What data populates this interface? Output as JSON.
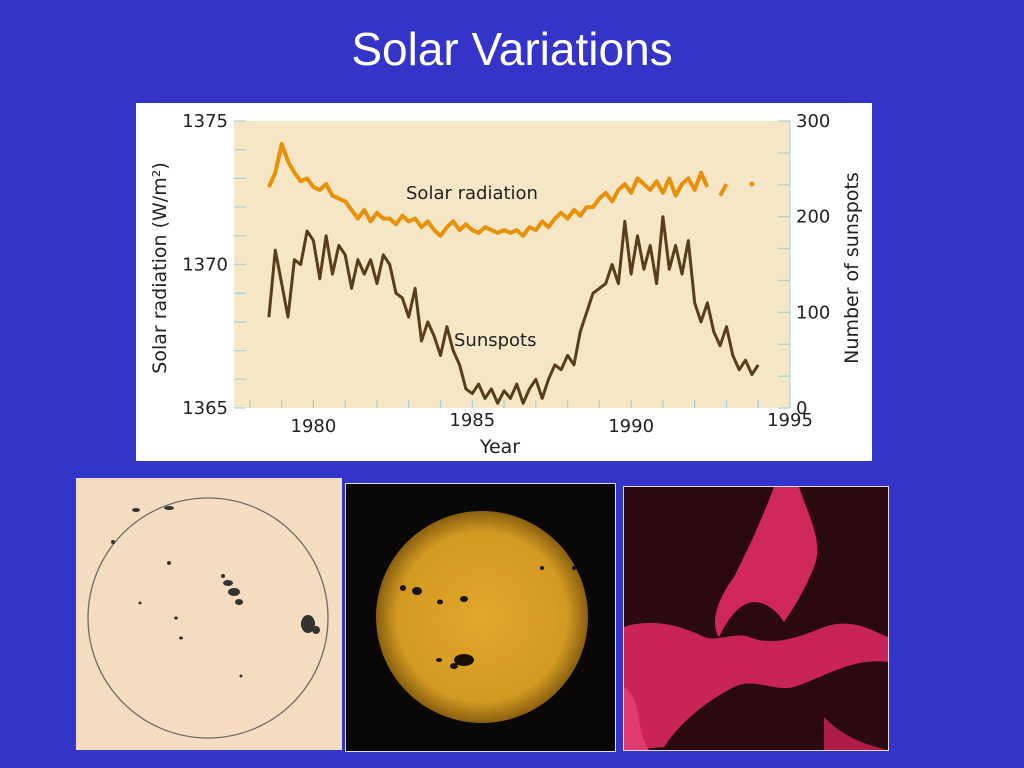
{
  "slide": {
    "title": "Solar Variations"
  },
  "colors": {
    "background": "#3434c8",
    "plot_bg": "#f5e6c6",
    "radiation_line": "#e8900a",
    "sunspots_line": "#5a3d1a",
    "axis_text": "#222222",
    "grid": "#9fd3e0"
  },
  "chart_data": {
    "type": "line",
    "xlabel": "Year",
    "ylabel_left": "Solar radiation (W/m²)",
    "ylabel_right": "Number of sunspots",
    "xlim": [
      1977.5,
      1995
    ],
    "ylim_left": [
      1365,
      1375
    ],
    "ylim_right": [
      0,
      300
    ],
    "x_ticks": [
      "1980",
      "1985",
      "1990",
      "1995"
    ],
    "y_left_ticks": [
      "1365",
      "1370",
      "1375"
    ],
    "y_right_ticks": [
      "0",
      "100",
      "200",
      "300"
    ],
    "series": [
      {
        "name": "Solar radiation",
        "axis": "left",
        "x": [
          1978.6,
          1978.8,
          1979.0,
          1979.2,
          1979.4,
          1979.6,
          1979.8,
          1980.0,
          1980.2,
          1980.4,
          1980.6,
          1980.8,
          1981.0,
          1981.2,
          1981.4,
          1981.6,
          1981.8,
          1982.0,
          1982.2,
          1982.4,
          1982.6,
          1982.8,
          1983.0,
          1983.2,
          1983.4,
          1983.6,
          1983.8,
          1984.0,
          1984.2,
          1984.4,
          1984.6,
          1984.8,
          1985.0,
          1985.2,
          1985.4,
          1985.6,
          1985.8,
          1986.0,
          1986.2,
          1986.4,
          1986.6,
          1986.8,
          1987.0,
          1987.2,
          1987.4,
          1987.6,
          1987.8,
          1988.0,
          1988.2,
          1988.4,
          1988.6,
          1988.8,
          1989.0,
          1989.2,
          1989.4,
          1989.6,
          1989.8,
          1990.0,
          1990.2,
          1990.4,
          1990.6,
          1990.8,
          1991.0,
          1991.2,
          1991.4,
          1991.6,
          1991.8,
          1992.0,
          1992.2,
          1992.4
        ],
        "values": [
          1372.7,
          1373.2,
          1374.2,
          1373.6,
          1373.2,
          1372.9,
          1373.0,
          1372.7,
          1372.6,
          1372.8,
          1372.4,
          1372.3,
          1372.2,
          1371.9,
          1371.6,
          1371.9,
          1371.5,
          1371.8,
          1371.6,
          1371.6,
          1371.4,
          1371.7,
          1371.5,
          1371.6,
          1371.3,
          1371.5,
          1371.2,
          1371.0,
          1371.3,
          1371.5,
          1371.2,
          1371.4,
          1371.2,
          1371.1,
          1371.3,
          1371.2,
          1371.1,
          1371.2,
          1371.1,
          1371.2,
          1371.0,
          1371.3,
          1371.2,
          1371.5,
          1371.3,
          1371.6,
          1371.8,
          1371.6,
          1371.9,
          1371.7,
          1372.0,
          1372.0,
          1372.3,
          1372.5,
          1372.2,
          1372.6,
          1372.8,
          1372.5,
          1373.0,
          1372.8,
          1372.6,
          1372.9,
          1372.5,
          1373.0,
          1372.4,
          1372.8,
          1373.0,
          1372.6,
          1373.2,
          1372.7
        ],
        "extra": {
          "x": [
            1992.8,
            1993.0,
            1993.8
          ],
          "values": [
            1372.4,
            1372.8,
            1372.8
          ]
        }
      },
      {
        "name": "Sunspots",
        "axis": "right",
        "x": [
          1978.6,
          1978.8,
          1979.0,
          1979.2,
          1979.4,
          1979.6,
          1979.8,
          1980.0,
          1980.2,
          1980.4,
          1980.6,
          1980.8,
          1981.0,
          1981.2,
          1981.4,
          1981.6,
          1981.8,
          1982.0,
          1982.2,
          1982.4,
          1982.6,
          1982.8,
          1983.0,
          1983.2,
          1983.4,
          1983.6,
          1983.8,
          1984.0,
          1984.2,
          1984.4,
          1984.6,
          1984.8,
          1985.0,
          1985.2,
          1985.4,
          1985.6,
          1985.8,
          1986.0,
          1986.2,
          1986.4,
          1986.6,
          1986.8,
          1987.0,
          1987.2,
          1987.4,
          1987.6,
          1987.8,
          1988.0,
          1988.2,
          1988.4,
          1988.6,
          1988.8,
          1989.0,
          1989.2,
          1989.4,
          1989.6,
          1989.8,
          1990.0,
          1990.2,
          1990.4,
          1990.6,
          1990.8,
          1991.0,
          1991.2,
          1991.4,
          1991.6,
          1991.8,
          1992.0,
          1992.2,
          1992.4,
          1992.6,
          1992.8,
          1993.0,
          1993.2,
          1993.4,
          1993.6,
          1993.8,
          1994.0
        ],
        "values": [
          95,
          165,
          130,
          95,
          155,
          150,
          185,
          175,
          135,
          180,
          140,
          170,
          160,
          125,
          155,
          140,
          155,
          130,
          160,
          150,
          120,
          115,
          95,
          125,
          70,
          90,
          75,
          55,
          85,
          60,
          45,
          20,
          15,
          25,
          10,
          20,
          5,
          18,
          10,
          25,
          5,
          20,
          30,
          10,
          30,
          45,
          40,
          55,
          45,
          80,
          100,
          120,
          125,
          130,
          150,
          130,
          195,
          140,
          180,
          145,
          170,
          130,
          200,
          145,
          170,
          140,
          175,
          110,
          90,
          110,
          80,
          65,
          85,
          55,
          40,
          50,
          35,
          45
        ]
      }
    ],
    "annotations": [
      "Solar radiation",
      "Sunspots"
    ]
  }
}
